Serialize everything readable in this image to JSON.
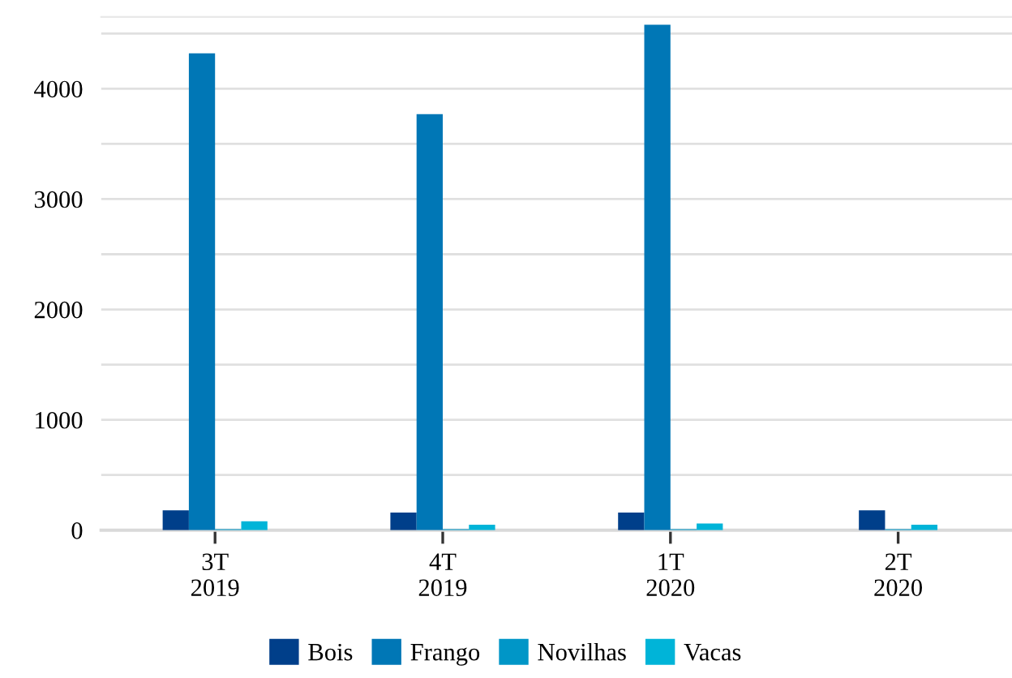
{
  "chart_data": {
    "type": "bar",
    "categories": [
      "3T\n2019",
      "4T\n2019",
      "1T\n2020",
      "2T\n2020"
    ],
    "series": [
      {
        "name": "Bois",
        "color": "#003f8a",
        "values": [
          180,
          160,
          160,
          180
        ]
      },
      {
        "name": "Frango",
        "color": "#0077b6",
        "values": [
          4320,
          3770,
          4580,
          null
        ]
      },
      {
        "name": "Novilhas",
        "color": "#0096c7",
        "values": [
          10,
          10,
          10,
          10
        ]
      },
      {
        "name": "Vacas",
        "color": "#00b4d8",
        "values": [
          80,
          50,
          60,
          50
        ]
      }
    ],
    "yticks": [
      0,
      {
        "value": 500,
        "label": null
      },
      1000,
      {
        "value": 1500,
        "label": null
      },
      2000,
      {
        "value": 2500,
        "label": null
      },
      3000,
      {
        "value": 3500,
        "label": null
      },
      4000,
      {
        "value": 4500,
        "label": null
      }
    ],
    "ylim": [
      0,
      4650
    ],
    "grid": "y",
    "legend": "bottom"
  }
}
